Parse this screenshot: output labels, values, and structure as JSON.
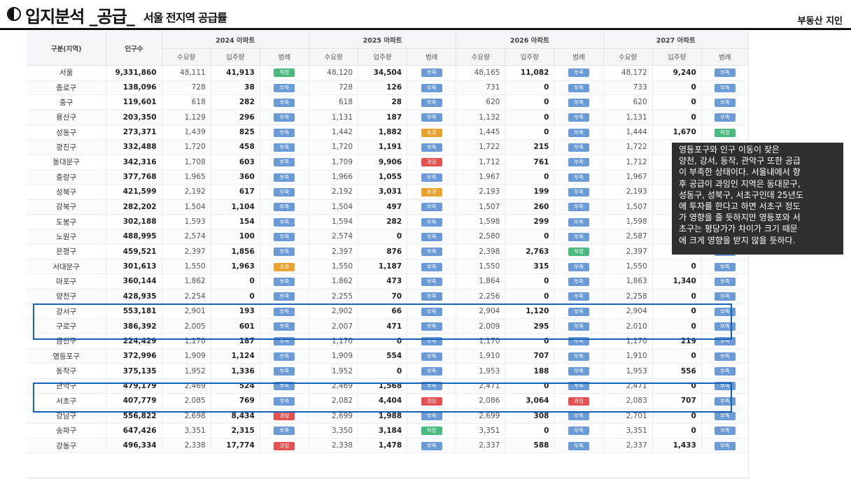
{
  "header": {
    "title": "입지분석 _공급_",
    "subtitle": "서울 전지역 공급률",
    "brand": "부동산 지인"
  },
  "table": {
    "col_region": "구분(지역)",
    "col_population": "인구수",
    "years": [
      "2024 아파트",
      "2025 아파트",
      "2026 아파트",
      "2027 아파트"
    ],
    "sub_cols": [
      "수요량",
      "입주량",
      "범례"
    ],
    "rows": [
      {
        "name": "서울",
        "pop": "9,331,860",
        "y": [
          [
            "48,111",
            "41,913",
            "적정",
            "ok"
          ],
          [
            "48,120",
            "34,504",
            "부족",
            "def"
          ],
          [
            "48,165",
            "11,082",
            "부족",
            "def"
          ],
          [
            "48,172",
            "9,240",
            "부족",
            "def"
          ]
        ]
      },
      {
        "name": "종로구",
        "pop": "138,096",
        "y": [
          [
            "728",
            "38",
            "부족",
            "def"
          ],
          [
            "728",
            "126",
            "부족",
            "def"
          ],
          [
            "731",
            "0",
            "부족",
            "def"
          ],
          [
            "733",
            "0",
            "부족",
            "def"
          ]
        ]
      },
      {
        "name": "중구",
        "pop": "119,601",
        "y": [
          [
            "618",
            "282",
            "부족",
            "def"
          ],
          [
            "618",
            "28",
            "부족",
            "def"
          ],
          [
            "620",
            "0",
            "부족",
            "def"
          ],
          [
            "620",
            "0",
            "부족",
            "def"
          ]
        ]
      },
      {
        "name": "용산구",
        "pop": "203,350",
        "y": [
          [
            "1,129",
            "296",
            "부족",
            "def"
          ],
          [
            "1,131",
            "187",
            "부족",
            "def"
          ],
          [
            "1,132",
            "0",
            "부족",
            "def"
          ],
          [
            "1,131",
            "0",
            "부족",
            "def"
          ]
        ]
      },
      {
        "name": "성동구",
        "pop": "273,371",
        "y": [
          [
            "1,439",
            "825",
            "부족",
            "def"
          ],
          [
            "1,442",
            "1,882",
            "초과",
            "over"
          ],
          [
            "1,445",
            "0",
            "부족",
            "def"
          ],
          [
            "1,444",
            "1,670",
            "적정",
            "ok"
          ]
        ]
      },
      {
        "name": "광진구",
        "pop": "332,488",
        "y": [
          [
            "1,720",
            "458",
            "부족",
            "def"
          ],
          [
            "1,720",
            "1,191",
            "부족",
            "def"
          ],
          [
            "1,722",
            "215",
            "부족",
            "def"
          ],
          [
            "1,722",
            "",
            "",
            ""
          ]
        ]
      },
      {
        "name": "동대문구",
        "pop": "342,316",
        "y": [
          [
            "1,708",
            "603",
            "부족",
            "def"
          ],
          [
            "1,709",
            "9,906",
            "과잉",
            "ex"
          ],
          [
            "1,712",
            "761",
            "부족",
            "def"
          ],
          [
            "1,712",
            "",
            "",
            ""
          ]
        ]
      },
      {
        "name": "중랑구",
        "pop": "377,768",
        "y": [
          [
            "1,965",
            "360",
            "부족",
            "def"
          ],
          [
            "1,966",
            "1,055",
            "부족",
            "def"
          ],
          [
            "1,967",
            "0",
            "부족",
            "def"
          ],
          [
            "1,967",
            "",
            "",
            ""
          ]
        ]
      },
      {
        "name": "성북구",
        "pop": "421,599",
        "y": [
          [
            "2,192",
            "617",
            "부족",
            "def"
          ],
          [
            "2,192",
            "3,031",
            "초과",
            "over"
          ],
          [
            "2,193",
            "199",
            "부족",
            "def"
          ],
          [
            "2,193",
            "2,",
            "",
            ""
          ]
        ]
      },
      {
        "name": "강북구",
        "pop": "282,202",
        "y": [
          [
            "1,504",
            "1,104",
            "부족",
            "def"
          ],
          [
            "1,504",
            "497",
            "부족",
            "def"
          ],
          [
            "1,507",
            "260",
            "부족",
            "def"
          ],
          [
            "1,507",
            "",
            "",
            ""
          ]
        ]
      },
      {
        "name": "도봉구",
        "pop": "302,188",
        "y": [
          [
            "1,593",
            "154",
            "부족",
            "def"
          ],
          [
            "1,594",
            "282",
            "부족",
            "def"
          ],
          [
            "1,598",
            "299",
            "부족",
            "def"
          ],
          [
            "1,598",
            "",
            "",
            ""
          ]
        ]
      },
      {
        "name": "노원구",
        "pop": "488,995",
        "y": [
          [
            "2,574",
            "100",
            "부족",
            "def"
          ],
          [
            "2,574",
            "0",
            "부족",
            "def"
          ],
          [
            "2,580",
            "0",
            "부족",
            "def"
          ],
          [
            "2,587",
            "",
            "",
            ""
          ]
        ]
      },
      {
        "name": "은평구",
        "pop": "459,521",
        "y": [
          [
            "2,397",
            "1,856",
            "부족",
            "def"
          ],
          [
            "2,397",
            "876",
            "부족",
            "def"
          ],
          [
            "2,398",
            "2,763",
            "적정",
            "ok"
          ],
          [
            "2,397",
            "0",
            "부족",
            "def"
          ]
        ]
      },
      {
        "name": "서대문구",
        "pop": "301,613",
        "y": [
          [
            "1,550",
            "1,963",
            "초과",
            "over"
          ],
          [
            "1,550",
            "1,187",
            "부족",
            "def"
          ],
          [
            "1,550",
            "315",
            "부족",
            "def"
          ],
          [
            "1,550",
            "0",
            "부족",
            "def"
          ]
        ]
      },
      {
        "name": "마포구",
        "pop": "360,144",
        "y": [
          [
            "1,862",
            "0",
            "부족",
            "def"
          ],
          [
            "1,862",
            "473",
            "부족",
            "def"
          ],
          [
            "1,864",
            "0",
            "부족",
            "def"
          ],
          [
            "1,863",
            "1,340",
            "부족",
            "def"
          ]
        ]
      },
      {
        "name": "양천구",
        "pop": "428,935",
        "y": [
          [
            "2,254",
            "0",
            "부족",
            "def"
          ],
          [
            "2,255",
            "70",
            "부족",
            "def"
          ],
          [
            "2,256",
            "0",
            "부족",
            "def"
          ],
          [
            "2,258",
            "0",
            "부족",
            "def"
          ]
        ]
      },
      {
        "name": "강서구",
        "pop": "553,181",
        "y": [
          [
            "2,901",
            "193",
            "부족",
            "def"
          ],
          [
            "2,902",
            "66",
            "부족",
            "def"
          ],
          [
            "2,904",
            "1,120",
            "부족",
            "def"
          ],
          [
            "2,904",
            "0",
            "부족",
            "def"
          ]
        ]
      },
      {
        "name": "구로구",
        "pop": "386,392",
        "y": [
          [
            "2,005",
            "601",
            "부족",
            "def"
          ],
          [
            "2,007",
            "471",
            "부족",
            "def"
          ],
          [
            "2,009",
            "295",
            "부족",
            "def"
          ],
          [
            "2,010",
            "0",
            "부족",
            "def"
          ]
        ]
      },
      {
        "name": "금천구",
        "pop": "224,429",
        "y": [
          [
            "1,170",
            "187",
            "부족",
            "def"
          ],
          [
            "1,170",
            "0",
            "부족",
            "def"
          ],
          [
            "1,170",
            "0",
            "부족",
            "def"
          ],
          [
            "1,170",
            "219",
            "부족",
            "def"
          ]
        ]
      },
      {
        "name": "영등포구",
        "pop": "372,996",
        "y": [
          [
            "1,909",
            "1,124",
            "부족",
            "def"
          ],
          [
            "1,909",
            "554",
            "부족",
            "def"
          ],
          [
            "1,910",
            "707",
            "부족",
            "def"
          ],
          [
            "1,910",
            "0",
            "부족",
            "def"
          ]
        ]
      },
      {
        "name": "동작구",
        "pop": "375,135",
        "y": [
          [
            "1,952",
            "1,336",
            "부족",
            "def"
          ],
          [
            "1,952",
            "0",
            "부족",
            "def"
          ],
          [
            "1,953",
            "188",
            "부족",
            "def"
          ],
          [
            "1,953",
            "556",
            "부족",
            "def"
          ]
        ]
      },
      {
        "name": "관악구",
        "pop": "479,179",
        "y": [
          [
            "2,469",
            "524",
            "부족",
            "def"
          ],
          [
            "2,469",
            "1,568",
            "부족",
            "def"
          ],
          [
            "2,471",
            "0",
            "부족",
            "def"
          ],
          [
            "2,471",
            "0",
            "부족",
            "def"
          ]
        ]
      },
      {
        "name": "서초구",
        "pop": "407,779",
        "y": [
          [
            "2,085",
            "769",
            "부족",
            "def"
          ],
          [
            "2,082",
            "4,404",
            "과잉",
            "ex"
          ],
          [
            "2,086",
            "3,064",
            "과잉",
            "ex"
          ],
          [
            "2,083",
            "707",
            "부족",
            "def"
          ]
        ]
      },
      {
        "name": "강남구",
        "pop": "556,822",
        "y": [
          [
            "2,698",
            "8,434",
            "과잉",
            "ex"
          ],
          [
            "2,699",
            "1,988",
            "부족",
            "def"
          ],
          [
            "2,699",
            "308",
            "부족",
            "def"
          ],
          [
            "2,701",
            "0",
            "부족",
            "def"
          ]
        ]
      },
      {
        "name": "송파구",
        "pop": "647,426",
        "y": [
          [
            "3,351",
            "2,315",
            "부족",
            "def"
          ],
          [
            "3,350",
            "3,184",
            "적정",
            "ok"
          ],
          [
            "3,351",
            "0",
            "부족",
            "def"
          ],
          [
            "3,351",
            "0",
            "부족",
            "def"
          ]
        ]
      },
      {
        "name": "강동구",
        "pop": "496,334",
        "y": [
          [
            "2,338",
            "17,774",
            "과잉",
            "ex"
          ],
          [
            "2,338",
            "1,478",
            "부족",
            "def"
          ],
          [
            "2,337",
            "588",
            "부족",
            "def"
          ],
          [
            "2,337",
            "1,433",
            "부족",
            "def"
          ]
        ]
      }
    ]
  },
  "tooltip": {
    "text": "영등포구와 인구 이동이 잦은\n양천, 강서, 동작, 관악구 또한 공급\n이 부족한 상태이다. 서울내에서 향\n후 공급이 과잉인 지역은 동대문구,\n성동구, 성북구, 서초구인데 25년도\n에 투자를 한다고 하면 서초구 정도\n가 영향을 줄 듯하지만 영등포와 서\n초구는 평당가가 차이가 크기 때문\n에 크게 영향을 받지 않을 듯하다."
  }
}
